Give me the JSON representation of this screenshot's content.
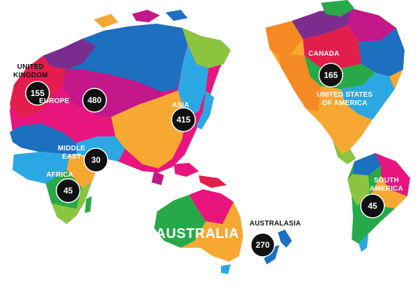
{
  "regions": [
    {
      "id": "uk",
      "name_lines": [
        "UNITED",
        "KINGDOM"
      ],
      "count": "155",
      "name_color": "dark"
    },
    {
      "id": "europe",
      "name_lines": [
        "EUROPE"
      ],
      "count": "480",
      "name_color": "light"
    },
    {
      "id": "asia",
      "name_lines": [
        "ASIA"
      ],
      "count": "415",
      "name_color": "light"
    },
    {
      "id": "middle_east",
      "name_lines": [
        "MIDDLE",
        "EAST"
      ],
      "count": "30",
      "name_color": "light"
    },
    {
      "id": "africa",
      "name_lines": [
        "AFRICA"
      ],
      "count": "45",
      "name_color": "light"
    },
    {
      "id": "australia",
      "name_lines": [
        "AUSTRALIA"
      ],
      "count": null,
      "name_color": "light"
    },
    {
      "id": "australasia",
      "name_lines": [
        "AUSTRALASIA"
      ],
      "count": "270",
      "name_color": "dark"
    },
    {
      "id": "canada",
      "name_lines": [
        "CANADA"
      ],
      "count": "165",
      "name_color": "light"
    },
    {
      "id": "usa",
      "name_lines": [
        "UNITED STATES",
        "OF AMERICA"
      ],
      "count": null,
      "name_color": "light"
    },
    {
      "id": "south_america",
      "name_lines": [
        "SOUTH",
        "AMERICA"
      ],
      "count": "45",
      "name_color": "light"
    }
  ],
  "palette": {
    "blue": "#1d6fc0",
    "light_blue": "#2ba8e3",
    "pink": "#e8157f",
    "magenta": "#c2188a",
    "purple": "#7b2c8f",
    "orange": "#f7a833",
    "dark_orange": "#f58a24",
    "green": "#27a94a",
    "light_green": "#8bc540",
    "red": "#e31e4c",
    "badge": "#111111"
  }
}
